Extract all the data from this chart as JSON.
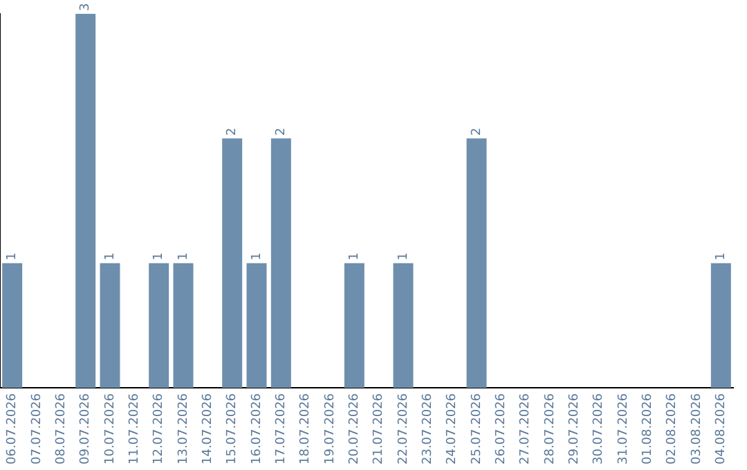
{
  "chart_data": {
    "type": "bar",
    "categories": [
      "06.07.2026",
      "07.07.2026",
      "08.07.2026",
      "09.07.2026",
      "10.07.2026",
      "11.07.2026",
      "12.07.2026",
      "13.07.2026",
      "14.07.2026",
      "15.07.2026",
      "16.07.2026",
      "17.07.2026",
      "18.07.2026",
      "19.07.2026",
      "20.07.2026",
      "21.07.2026",
      "22.07.2026",
      "23.07.2026",
      "24.07.2026",
      "25.07.2026",
      "26.07.2026",
      "27.07.2026",
      "28.07.2026",
      "29.07.2026",
      "30.07.2026",
      "31.07.2026",
      "01.08.2026",
      "02.08.2026",
      "03.08.2026",
      "04.08.2026"
    ],
    "values": [
      1,
      0,
      0,
      3,
      1,
      0,
      1,
      1,
      0,
      2,
      1,
      2,
      0,
      0,
      1,
      0,
      1,
      0,
      0,
      2,
      0,
      0,
      0,
      0,
      0,
      0,
      0,
      0,
      0,
      1
    ],
    "value_labels": [
      "1",
      null,
      null,
      "3",
      "1",
      null,
      "1",
      "1",
      null,
      "2",
      "1",
      "2",
      null,
      null,
      "1",
      null,
      "1",
      null,
      null,
      "2",
      null,
      null,
      null,
      null,
      null,
      null,
      null,
      null,
      null,
      "1"
    ],
    "color": "#6d8fad",
    "grid": false,
    "legend": false,
    "tick_labels": "x"
  }
}
